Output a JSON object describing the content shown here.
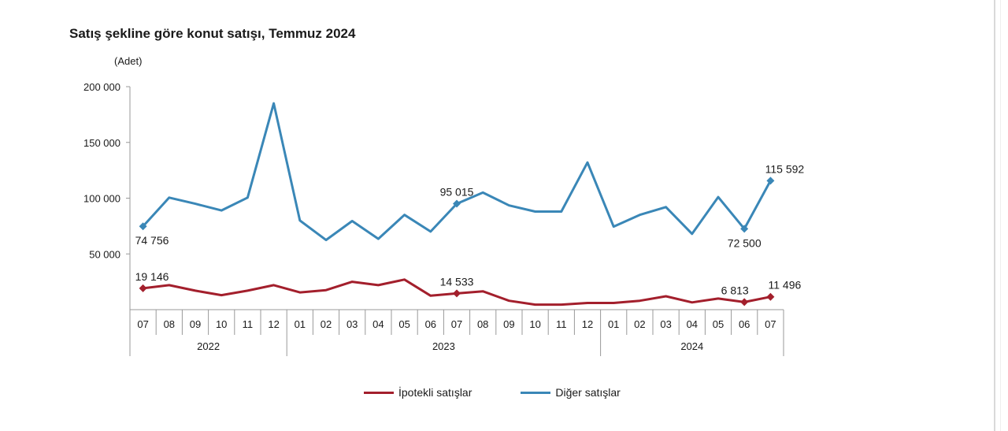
{
  "title": "Satış şekline göre konut satışı, Temmuz 2024",
  "colors": {
    "ipotekli": "#a31f2c",
    "diger": "#3a87b7",
    "axis": "#999999"
  },
  "chart_data": {
    "type": "line",
    "ylabel": "(Adet)",
    "ylim": [
      0,
      200000
    ],
    "yticks": [
      "200 000",
      "150 000",
      "100 000",
      "50 000"
    ],
    "ytick_values": [
      200000,
      150000,
      100000,
      50000
    ],
    "categories": [
      "07",
      "08",
      "09",
      "10",
      "11",
      "12",
      "01",
      "02",
      "03",
      "04",
      "05",
      "06",
      "07",
      "08",
      "09",
      "10",
      "11",
      "12",
      "01",
      "02",
      "03",
      "04",
      "05",
      "06",
      "07"
    ],
    "years": [
      {
        "label": "2022",
        "start": 0,
        "end": 5
      },
      {
        "label": "2023",
        "start": 6,
        "end": 17
      },
      {
        "label": "2024",
        "start": 18,
        "end": 24
      }
    ],
    "series": [
      {
        "name": "Diğer satışlar",
        "color": "#3a87b7",
        "values": [
          74756,
          100500,
          95000,
          89000,
          100500,
          185000,
          80000,
          62500,
          79500,
          63500,
          85000,
          70000,
          95015,
          105000,
          93500,
          88000,
          88000,
          132000,
          74500,
          85000,
          92000,
          68000,
          101000,
          72500,
          115592
        ],
        "labels": [
          {
            "index": 0,
            "text": "74 756",
            "pos": "below"
          },
          {
            "index": 12,
            "text": "95 015",
            "pos": "above"
          },
          {
            "index": 23,
            "text": "72 500",
            "pos": "below"
          },
          {
            "index": 24,
            "text": "115 592",
            "pos": "above"
          }
        ]
      },
      {
        "name": "İpotekli satışlar",
        "color": "#a31f2c",
        "values": [
          19146,
          22000,
          17000,
          13000,
          17000,
          22000,
          15500,
          17500,
          25000,
          22000,
          27000,
          12500,
          14533,
          16500,
          8000,
          4500,
          4500,
          6000,
          6000,
          8000,
          12000,
          6500,
          10000,
          6813,
          11496
        ],
        "labels": [
          {
            "index": 0,
            "text": "19 146",
            "pos": "above"
          },
          {
            "index": 12,
            "text": "14 533",
            "pos": "above"
          },
          {
            "index": 23,
            "text": "6 813",
            "pos": "above"
          },
          {
            "index": 24,
            "text": "11 496",
            "pos": "above"
          }
        ]
      }
    ],
    "legend": [
      "İpotekli satışlar",
      "Diğer satışlar"
    ],
    "legend_position": "bottom",
    "grid": false
  }
}
